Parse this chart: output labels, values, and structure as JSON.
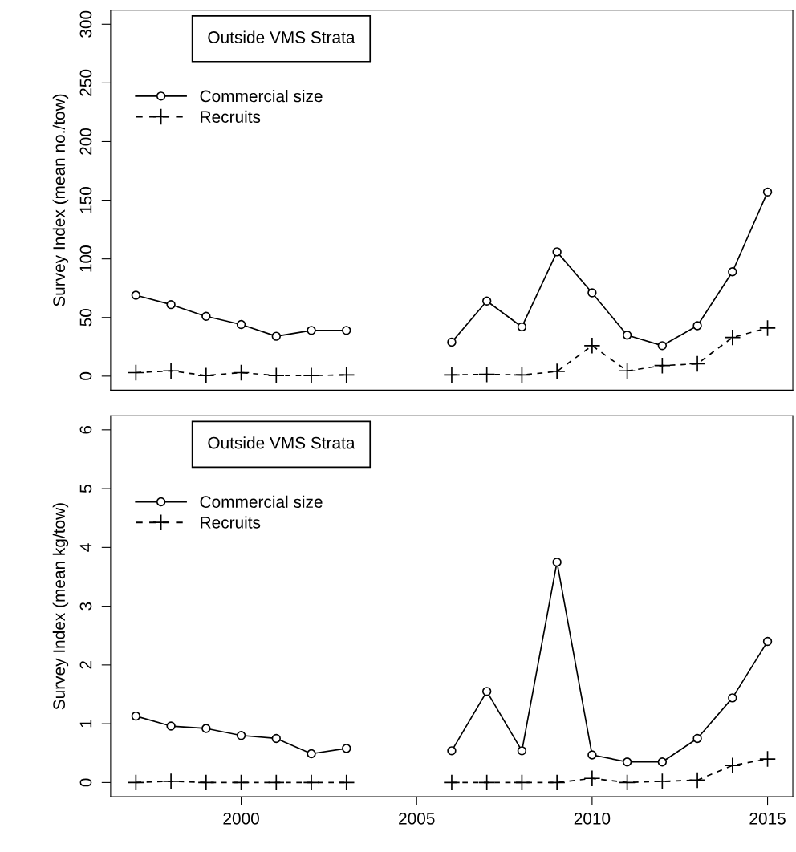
{
  "chart_data": [
    {
      "type": "line",
      "ylabel": "Survey Index (mean no./tow)",
      "annotations": [
        "Outside VMS Strata"
      ],
      "x": [
        1997,
        1998,
        1999,
        2000,
        2001,
        2002,
        2003,
        2004,
        2005,
        2006,
        2007,
        2008,
        2009,
        2010,
        2011,
        2012,
        2013,
        2014,
        2015
      ],
      "xlim": [
        1996.28,
        2015.72
      ],
      "ylim": [
        -12,
        312
      ],
      "yticks": [
        0,
        50,
        100,
        150,
        200,
        250,
        300
      ],
      "tick_labels": "y",
      "grid": false,
      "legend": "top left",
      "series": [
        {
          "name": "Commercial size",
          "color": "#000000",
          "marker": "circle",
          "line_style": "solid",
          "values": [
            69,
            61,
            51,
            44,
            34,
            39,
            39,
            null,
            null,
            29,
            64,
            42,
            106,
            71,
            35,
            26,
            43,
            89,
            157
          ]
        },
        {
          "name": "Recruits",
          "color": "#000000",
          "marker": "cross",
          "line_style": "dashed",
          "values": [
            3,
            4.5,
            0.5,
            3,
            0.5,
            0.5,
            1,
            null,
            null,
            1,
            1.5,
            1,
            4,
            26,
            4.5,
            9,
            10.5,
            33,
            41
          ]
        }
      ]
    },
    {
      "type": "line",
      "ylabel": "Survey Index (mean kg/tow)",
      "annotations": [
        "Outside VMS Strata"
      ],
      "x": [
        1997,
        1998,
        1999,
        2000,
        2001,
        2002,
        2003,
        2004,
        2005,
        2006,
        2007,
        2008,
        2009,
        2010,
        2011,
        2012,
        2013,
        2014,
        2015
      ],
      "xlim": [
        1996.28,
        2015.72
      ],
      "xticks": [
        2000,
        2005,
        2010,
        2015
      ],
      "ylim": [
        -0.24,
        6.24
      ],
      "yticks": [
        0,
        1,
        2,
        3,
        4,
        5,
        6
      ],
      "grid": false,
      "legend": "top left",
      "series": [
        {
          "name": "Commercial size",
          "color": "#000000",
          "marker": "circle",
          "line_style": "solid",
          "values": [
            1.13,
            0.96,
            0.92,
            0.8,
            0.75,
            0.49,
            0.58,
            null,
            null,
            0.54,
            1.55,
            0.54,
            3.75,
            0.47,
            0.35,
            0.35,
            0.75,
            1.44,
            2.4
          ]
        },
        {
          "name": "Recruits",
          "color": "#000000",
          "marker": "cross",
          "line_style": "dashed",
          "values": [
            0,
            0.02,
            0,
            0,
            0,
            0,
            0,
            null,
            null,
            0,
            0,
            0,
            0,
            0.07,
            0,
            0.02,
            0.04,
            0.29,
            0.4
          ]
        }
      ]
    }
  ]
}
